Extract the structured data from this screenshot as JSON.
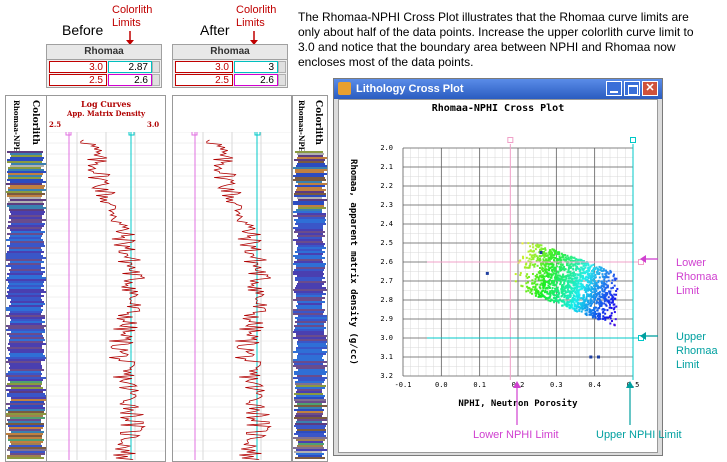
{
  "before_label": "Before",
  "after_label": "After",
  "colorlith_limits_label_1": "Colorlith",
  "colorlith_limits_label_2": "Limits",
  "param_table": {
    "title": "Rhomaa"
  },
  "before": {
    "upper_left": "3.0",
    "upper_right": "2.87",
    "lower_left": "2.5",
    "lower_right": "2.6"
  },
  "after": {
    "upper_left": "3.0",
    "upper_right": "3",
    "lower_left": "2.5",
    "lower_right": "2.6"
  },
  "track": {
    "colorlith_header": "Colorlith",
    "colorlith_sub": "Rhomaa-NPHI",
    "log_curves_title": "Log Curves",
    "log_curve_name": "App. Matrix Density",
    "scale_left": "2.5",
    "scale_right": "3.0"
  },
  "description": "The Rhomaa-NPHI Cross Plot illustrates that the Rhomaa curve limits are only about half of the data points. Increase the upper colorlith curve limit to 3.0 and notice that the boundary area between NPHI and Rhomaa now encloses most of the data points.",
  "window": {
    "title": "Lithology Cross Plot",
    "plot_title": "Rhomaa-NPHI Cross Plot",
    "colors": {
      "titlebar": "#3a6fd8",
      "frame": "#dcdcdc"
    }
  },
  "chart_data": {
    "type": "scatter",
    "title": "Rhomaa-NPHI Cross Plot",
    "xlabel": "NPHI, Neutron Porosity",
    "ylabel": "Rhomaa, apparent matrix density (g/cc)",
    "xlim": [
      -0.1,
      0.5
    ],
    "ylim": [
      3.2,
      2.0
    ],
    "x_ticks": [
      "-0.1",
      "0.0",
      "0.1",
      "0.2",
      "0.3",
      "0.4",
      "0.5"
    ],
    "y_ticks": [
      "2.0",
      "2.1",
      "2.2",
      "2.3",
      "2.4",
      "2.5",
      "2.6",
      "2.7",
      "2.8",
      "2.9",
      "3.0",
      "3.1",
      "3.2"
    ],
    "grid": true,
    "limits": {
      "lower_nphi": 0.18,
      "upper_nphi": 0.5,
      "lower_rhomaa": 2.6,
      "upper_rhomaa": 3.0
    },
    "cluster": {
      "nphi_range": [
        0.13,
        0.45
      ],
      "rhomaa_range": [
        2.52,
        3.12
      ]
    }
  },
  "callouts": {
    "lower_rhomaa": [
      "Lower",
      "Rhomaa",
      "Limit"
    ],
    "upper_rhomaa": [
      "Upper",
      "Rhomaa",
      "Limit"
    ],
    "lower_nphi": "Lower NPHI Limit",
    "upper_nphi": "Upper NPHI Limit"
  },
  "colors": {
    "label_red": "#c00000",
    "callout_pink": "#d040d0",
    "callout_cyan": "#00a0a0",
    "curve": "#b00000"
  }
}
